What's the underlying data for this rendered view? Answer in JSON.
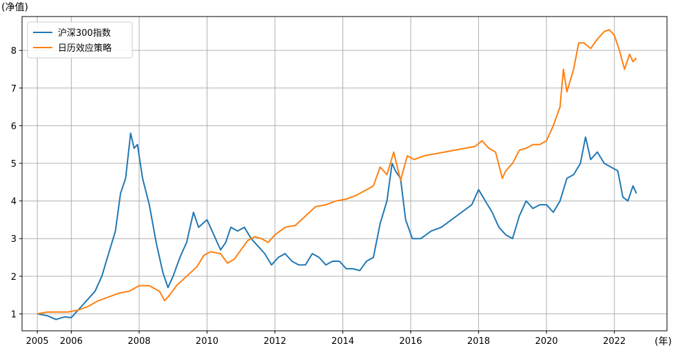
{
  "chart_data": {
    "type": "line",
    "title": "",
    "xlabel": "(年)",
    "ylabel": "(净值)",
    "xlim": [
      2004.55,
      2023.55
    ],
    "ylim": [
      0.55,
      8.9
    ],
    "xticks": [
      2005,
      2006,
      2008,
      2010,
      2012,
      2014,
      2016,
      2018,
      2020,
      2022
    ],
    "yticks": [
      1,
      2,
      3,
      4,
      5,
      6,
      7,
      8
    ],
    "grid": true,
    "legend": "top-left",
    "series": [
      {
        "name": "沪深300指数",
        "color": "#1f77b4",
        "x": [
          2005.0,
          2005.3,
          2005.55,
          2005.8,
          2006.0,
          2006.2,
          2006.45,
          2006.7,
          2006.9,
          2007.1,
          2007.3,
          2007.45,
          2007.6,
          2007.75,
          2007.85,
          2007.95,
          2008.1,
          2008.3,
          2008.5,
          2008.7,
          2008.85,
          2009.0,
          2009.2,
          2009.4,
          2009.6,
          2009.75,
          2010.0,
          2010.2,
          2010.4,
          2010.55,
          2010.7,
          2010.9,
          2011.1,
          2011.3,
          2011.5,
          2011.7,
          2011.9,
          2012.1,
          2012.3,
          2012.5,
          2012.7,
          2012.9,
          2013.1,
          2013.3,
          2013.5,
          2013.7,
          2013.9,
          2014.1,
          2014.3,
          2014.5,
          2014.7,
          2014.9,
          2015.1,
          2015.3,
          2015.45,
          2015.55,
          2015.7,
          2015.85,
          2016.05,
          2016.3,
          2016.6,
          2016.9,
          2017.2,
          2017.5,
          2017.8,
          2018.0,
          2018.2,
          2018.4,
          2018.6,
          2018.8,
          2019.0,
          2019.2,
          2019.4,
          2019.6,
          2019.8,
          2020.0,
          2020.2,
          2020.4,
          2020.6,
          2020.8,
          2021.0,
          2021.15,
          2021.3,
          2021.5,
          2021.7,
          2021.9,
          2022.1,
          2022.25,
          2022.4,
          2022.55,
          2022.65
        ],
        "values": [
          1.0,
          0.95,
          0.85,
          0.92,
          0.9,
          1.1,
          1.35,
          1.6,
          2.0,
          2.6,
          3.2,
          4.2,
          4.6,
          5.8,
          5.4,
          5.5,
          4.6,
          3.9,
          2.9,
          2.1,
          1.7,
          2.0,
          2.5,
          2.9,
          3.7,
          3.3,
          3.5,
          3.1,
          2.7,
          2.9,
          3.3,
          3.2,
          3.3,
          3.0,
          2.8,
          2.6,
          2.3,
          2.5,
          2.6,
          2.4,
          2.3,
          2.3,
          2.6,
          2.5,
          2.3,
          2.4,
          2.4,
          2.2,
          2.2,
          2.15,
          2.4,
          2.5,
          3.4,
          4.0,
          5.0,
          4.8,
          4.6,
          3.5,
          3.0,
          3.0,
          3.2,
          3.3,
          3.5,
          3.7,
          3.9,
          4.3,
          4.0,
          3.7,
          3.3,
          3.1,
          3.0,
          3.6,
          4.0,
          3.8,
          3.9,
          3.9,
          3.7,
          4.0,
          4.6,
          4.7,
          5.0,
          5.7,
          5.1,
          5.3,
          5.0,
          4.9,
          4.8,
          4.1,
          4.0,
          4.4,
          4.2
        ]
      },
      {
        "name": "日历效应策略",
        "color": "#ff7f0e",
        "x": [
          2005.0,
          2005.3,
          2005.6,
          2005.9,
          2006.2,
          2006.5,
          2006.8,
          2007.1,
          2007.4,
          2007.7,
          2008.0,
          2008.3,
          2008.6,
          2008.75,
          2008.9,
          2009.1,
          2009.4,
          2009.7,
          2009.9,
          2010.1,
          2010.4,
          2010.6,
          2010.8,
          2011.0,
          2011.2,
          2011.4,
          2011.6,
          2011.8,
          2012.0,
          2012.3,
          2012.6,
          2012.9,
          2013.2,
          2013.5,
          2013.8,
          2014.1,
          2014.4,
          2014.7,
          2014.9,
          2015.1,
          2015.3,
          2015.5,
          2015.7,
          2015.9,
          2016.1,
          2016.4,
          2016.7,
          2017.0,
          2017.3,
          2017.6,
          2017.9,
          2018.1,
          2018.3,
          2018.5,
          2018.7,
          2018.8,
          2019.0,
          2019.2,
          2019.4,
          2019.6,
          2019.8,
          2020.0,
          2020.2,
          2020.4,
          2020.5,
          2020.6,
          2020.8,
          2020.95,
          2021.1,
          2021.3,
          2021.5,
          2021.7,
          2021.85,
          2022.0,
          2022.15,
          2022.3,
          2022.45,
          2022.55,
          2022.65
        ],
        "values": [
          1.0,
          1.05,
          1.05,
          1.05,
          1.1,
          1.2,
          1.35,
          1.45,
          1.55,
          1.6,
          1.75,
          1.75,
          1.6,
          1.35,
          1.5,
          1.75,
          2.0,
          2.25,
          2.55,
          2.65,
          2.6,
          2.35,
          2.45,
          2.7,
          2.95,
          3.05,
          3.0,
          2.9,
          3.1,
          3.3,
          3.35,
          3.6,
          3.85,
          3.9,
          4.0,
          4.05,
          4.15,
          4.3,
          4.4,
          4.9,
          4.7,
          5.3,
          4.55,
          5.2,
          5.1,
          5.2,
          5.25,
          5.3,
          5.35,
          5.4,
          5.45,
          5.6,
          5.4,
          5.3,
          4.6,
          4.8,
          5.0,
          5.35,
          5.4,
          5.5,
          5.5,
          5.6,
          6.0,
          6.5,
          7.5,
          6.9,
          7.5,
          8.2,
          8.2,
          8.05,
          8.3,
          8.5,
          8.55,
          8.4,
          8.0,
          7.5,
          7.9,
          7.7,
          7.8
        ]
      }
    ]
  }
}
